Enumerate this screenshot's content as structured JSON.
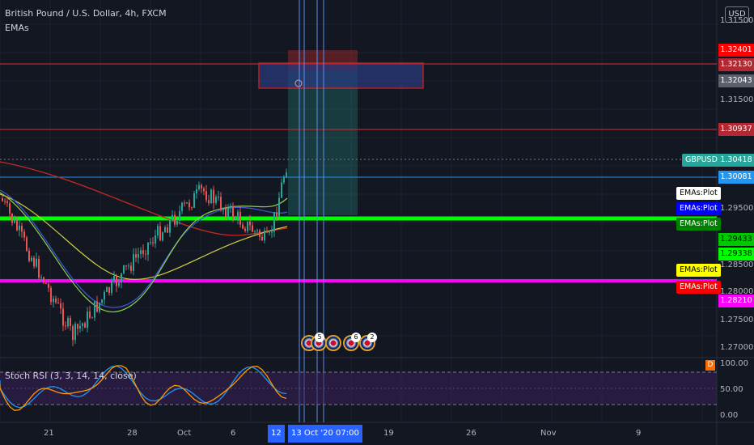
{
  "header": {
    "symbol_title": "British Pound / U.S. Dollar, 4h, FXCM",
    "indicator_name": "EMAs",
    "currency_button": "USD"
  },
  "price_axis": {
    "ticks": [
      "1.31500",
      "1.30418",
      "1.29500",
      "1.28500",
      "1.28000",
      "1.27500",
      "1.27000"
    ],
    "labels": [
      {
        "text": "1.32401",
        "bg": "#ff0000",
        "fg": "#ffffff"
      },
      {
        "text": "1.32130",
        "bg": "#b22833",
        "fg": "#ffffff"
      },
      {
        "text": "1.32043",
        "bg": "#5d606b",
        "fg": "#ffffff"
      },
      {
        "text": "1.30937",
        "bg": "#b22833",
        "fg": "#ffffff"
      },
      {
        "text": "1.30418",
        "bg": "#26a69a",
        "fg": "#ffffff"
      },
      {
        "text": "1.30081",
        "bg": "#2196f3",
        "fg": "#ffffff"
      },
      {
        "text": "1.29433",
        "bg": "#00c800",
        "fg": "#000000"
      },
      {
        "text": "1.29338",
        "bg": "#00ff00",
        "fg": "#000000"
      },
      {
        "text": "1.28210",
        "bg": "#ff00ff",
        "fg": "#ffffff"
      }
    ]
  },
  "chart_tags": {
    "symbol": "GBPUSD",
    "emas": [
      {
        "text": "EMAs:Plot",
        "bg": "#ffffff",
        "fg": "#000000"
      },
      {
        "text": "EMAs:Plot",
        "bg": "#0000ff",
        "fg": "#ffffff"
      },
      {
        "text": "EMAs:Plot",
        "bg": "#008000",
        "fg": "#ffffff"
      },
      {
        "text": "EMAs:Plot",
        "bg": "#ffff00",
        "fg": "#000000"
      },
      {
        "text": "EMAs:Plot",
        "bg": "#ff0000",
        "fg": "#ffffff"
      }
    ]
  },
  "events": {
    "count_a": "5",
    "count_b": "6",
    "count_c": "2"
  },
  "stoch": {
    "label": "Stoch RSI (3, 3, 14, 14, close)",
    "badge": "D",
    "ticks": [
      "100.00",
      "50.00",
      "0.00"
    ]
  },
  "time_axis": {
    "labels": [
      "21",
      "28",
      "Oct",
      "6",
      "12",
      "19",
      "26",
      "Nov",
      "9"
    ],
    "crosshair_label": "13 Oct '20   07:00"
  },
  "colors": {
    "bg": "#131722",
    "up": "#26a69a",
    "down": "#ef5350",
    "grid": "#1e222d",
    "magenta": "#ff00ff",
    "green_line": "#00ff00"
  }
}
